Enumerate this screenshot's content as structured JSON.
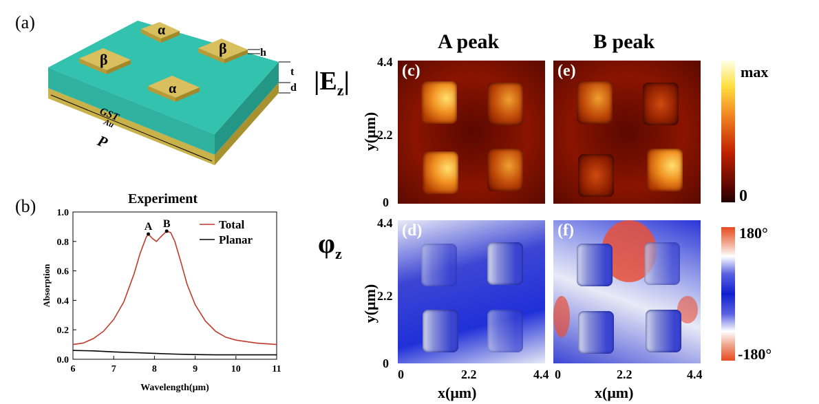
{
  "panel_a": {
    "label": "(a)",
    "patch_labels": [
      "α",
      "β",
      "β",
      "α"
    ],
    "dim_h": "h",
    "dim_t": "t",
    "dim_d": "d",
    "layer_gst": "GST",
    "layer_au": "Au",
    "period": "P"
  },
  "panel_b": {
    "label": "(b)",
    "chart_data": {
      "type": "line",
      "title": "Experiment",
      "xlabel": "Wavelength(μm)",
      "ylabel": "Absorption",
      "xlim": [
        6,
        11
      ],
      "ylim": [
        0,
        1.0
      ],
      "xticks": [
        "6",
        "7",
        "8",
        "9",
        "10",
        "11"
      ],
      "yticks": [
        "0.0",
        "0.2",
        "0.4",
        "0.6",
        "0.8",
        "1.0"
      ],
      "legend_position": "top-right",
      "series": [
        {
          "name": "Total",
          "color": "#c0392b",
          "x": [
            6.0,
            6.25,
            6.5,
            6.75,
            7.0,
            7.25,
            7.5,
            7.65,
            7.8,
            7.85,
            7.95,
            8.05,
            8.15,
            8.3,
            8.4,
            8.5,
            8.65,
            8.8,
            9.0,
            9.25,
            9.5,
            9.75,
            10.0,
            10.5,
            11.0
          ],
          "y": [
            0.1,
            0.11,
            0.14,
            0.19,
            0.27,
            0.39,
            0.58,
            0.72,
            0.83,
            0.85,
            0.82,
            0.8,
            0.83,
            0.87,
            0.86,
            0.8,
            0.66,
            0.51,
            0.37,
            0.26,
            0.19,
            0.15,
            0.13,
            0.11,
            0.1
          ]
        },
        {
          "name": "Planar",
          "color": "#000000",
          "x": [
            6.0,
            6.5,
            7.0,
            7.5,
            8.0,
            8.5,
            9.0,
            9.5,
            10.0,
            10.5,
            11.0
          ],
          "y": [
            0.06,
            0.057,
            0.05,
            0.045,
            0.04,
            0.035,
            0.032,
            0.03,
            0.03,
            0.03,
            0.03
          ]
        }
      ],
      "annotations": [
        {
          "text": "A",
          "x": 7.85,
          "y": 0.85
        },
        {
          "text": "B",
          "x": 8.3,
          "y": 0.87
        }
      ]
    }
  },
  "field_maps": {
    "col_titles": [
      "A peak",
      "B peak"
    ],
    "row_labels": {
      "ez": "|E",
      "ez_sub": "z",
      "ez_end": "|",
      "phi": "φ",
      "phi_sub": "z"
    },
    "panel_tags": [
      "(c)",
      "(e)",
      "(d)",
      "(f)"
    ],
    "y_ticks": [
      "4.4",
      "2.2",
      "0"
    ],
    "x_ticks": [
      "0",
      "2.2",
      "4.4"
    ],
    "y_label": "y(μm)",
    "x_label": "x(μm)",
    "colorbar_ez": {
      "max": "max",
      "min": "0"
    },
    "colorbar_phi": {
      "max": "180°",
      "min": "-180°"
    }
  }
}
